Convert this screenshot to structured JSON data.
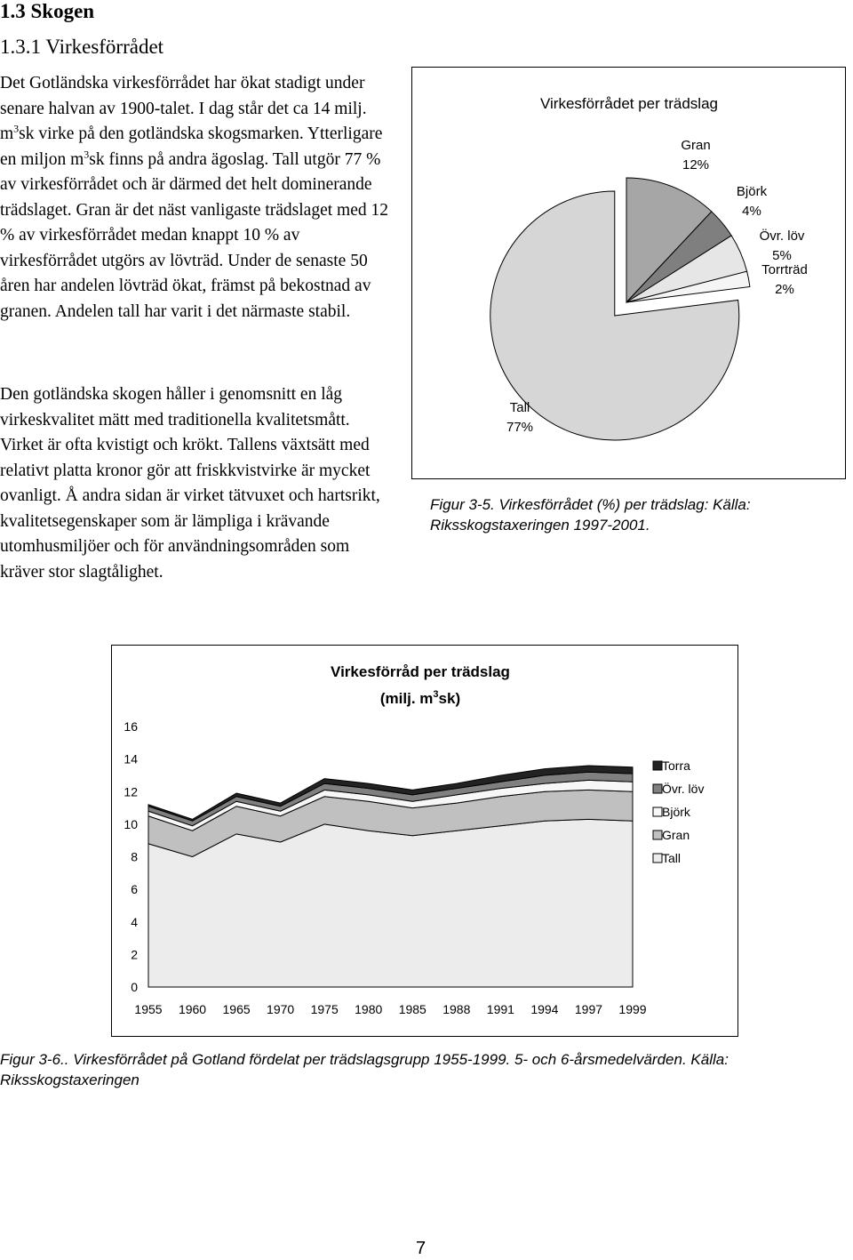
{
  "heading": "1.3 Skogen",
  "subheading": "1.3.1 Virkesförrådet",
  "paragraphs": [
    [
      "Det Gotländska virkesförrådet har ökat stadigt under senare halvan av 1900-talet. I dag står det ca 14 milj. m",
      "3",
      "sk virke på den gotländska skogsmarken. Ytterligare en miljon m",
      "3",
      "sk finns på andra ägoslag. Tall utgör 77 % av virkesförrådet och är därmed det helt dominerande trädslaget. Gran är det näst vanligaste trädslaget med 12 % av virkesförrådet medan knappt 10 % av virkesförrådet utgörs av lövträd. Under de senaste 50 åren har andelen lövträd ökat, främst på bekostnad av granen. Andelen tall har varit i det närmaste stabil."
    ],
    [
      "Den gotländska skogen håller i genomsnitt en låg virkeskvalitet mätt med traditionella kvalitetsmått. Virket är ofta kvistigt och krökt. Tallens växtsätt med relativt platta kronor gör att friskkvistvirke är mycket ovanligt. Å andra sidan är virket tätvuxet och hartsrikt, kvalitetsegenskaper som är lämpliga i krävande utomhusmiljöer och för användningsområden som kräver stor slagtålighet."
    ]
  ],
  "chart_data": [
    {
      "type": "pie",
      "title": "Virkesförrådet per trädslag",
      "categories": [
        "Gran",
        "Björk",
        "Övr. löv",
        "Torrträd",
        "Tall"
      ],
      "values": [
        12,
        4,
        5,
        2,
        77
      ],
      "value_labels": [
        "12%",
        "4%",
        "5%",
        "2%",
        "77%"
      ],
      "colors": [
        "#a6a6a6",
        "#7f7f7f",
        "#e6e6e6",
        "#f5f5f5",
        "#d6d6d6"
      ]
    },
    {
      "type": "area",
      "title": "Virkesförråd per trädslag",
      "subtitle": [
        "(milj. m",
        "3",
        "sk)"
      ],
      "categories": [
        "1955",
        "1960",
        "1965",
        "1970",
        "1975",
        "1980",
        "1985",
        "1988",
        "1991",
        "1994",
        "1997",
        "1999"
      ],
      "series": [
        {
          "name": "Tall",
          "color": "#ececec",
          "values": [
            8.8,
            8.0,
            9.4,
            8.9,
            10.0,
            9.6,
            9.3,
            9.6,
            9.9,
            10.2,
            10.3,
            10.2
          ]
        },
        {
          "name": "Gran",
          "color": "#c0c0c0",
          "values": [
            1.7,
            1.6,
            1.7,
            1.6,
            1.7,
            1.8,
            1.7,
            1.7,
            1.8,
            1.8,
            1.8,
            1.8
          ]
        },
        {
          "name": "Björk",
          "color": "#f7f7f7",
          "values": [
            0.3,
            0.3,
            0.3,
            0.3,
            0.4,
            0.4,
            0.4,
            0.5,
            0.5,
            0.5,
            0.6,
            0.6
          ]
        },
        {
          "name": "Övr. löv",
          "color": "#808080",
          "values": [
            0.3,
            0.3,
            0.3,
            0.3,
            0.4,
            0.4,
            0.4,
            0.4,
            0.4,
            0.5,
            0.5,
            0.5
          ]
        },
        {
          "name": "Torra",
          "color": "#222222",
          "values": [
            0.1,
            0.1,
            0.2,
            0.2,
            0.3,
            0.3,
            0.3,
            0.3,
            0.4,
            0.4,
            0.4,
            0.4
          ]
        }
      ],
      "ylim": [
        0,
        16
      ],
      "yticks": [
        0,
        2,
        4,
        6,
        8,
        10,
        12,
        14,
        16
      ]
    }
  ],
  "captions": [
    "Figur 3-5. Virkesförrådet (%) per trädslag: Källa: Riksskogstaxeringen 1997-2001.",
    "Figur 3-6.. Virkesförrådet på Gotland fördelat per trädslagsgrupp 1955-1999. 5- och 6-årsmedelvärden. Källa: Riksskogstaxeringen"
  ],
  "page_number": "7"
}
